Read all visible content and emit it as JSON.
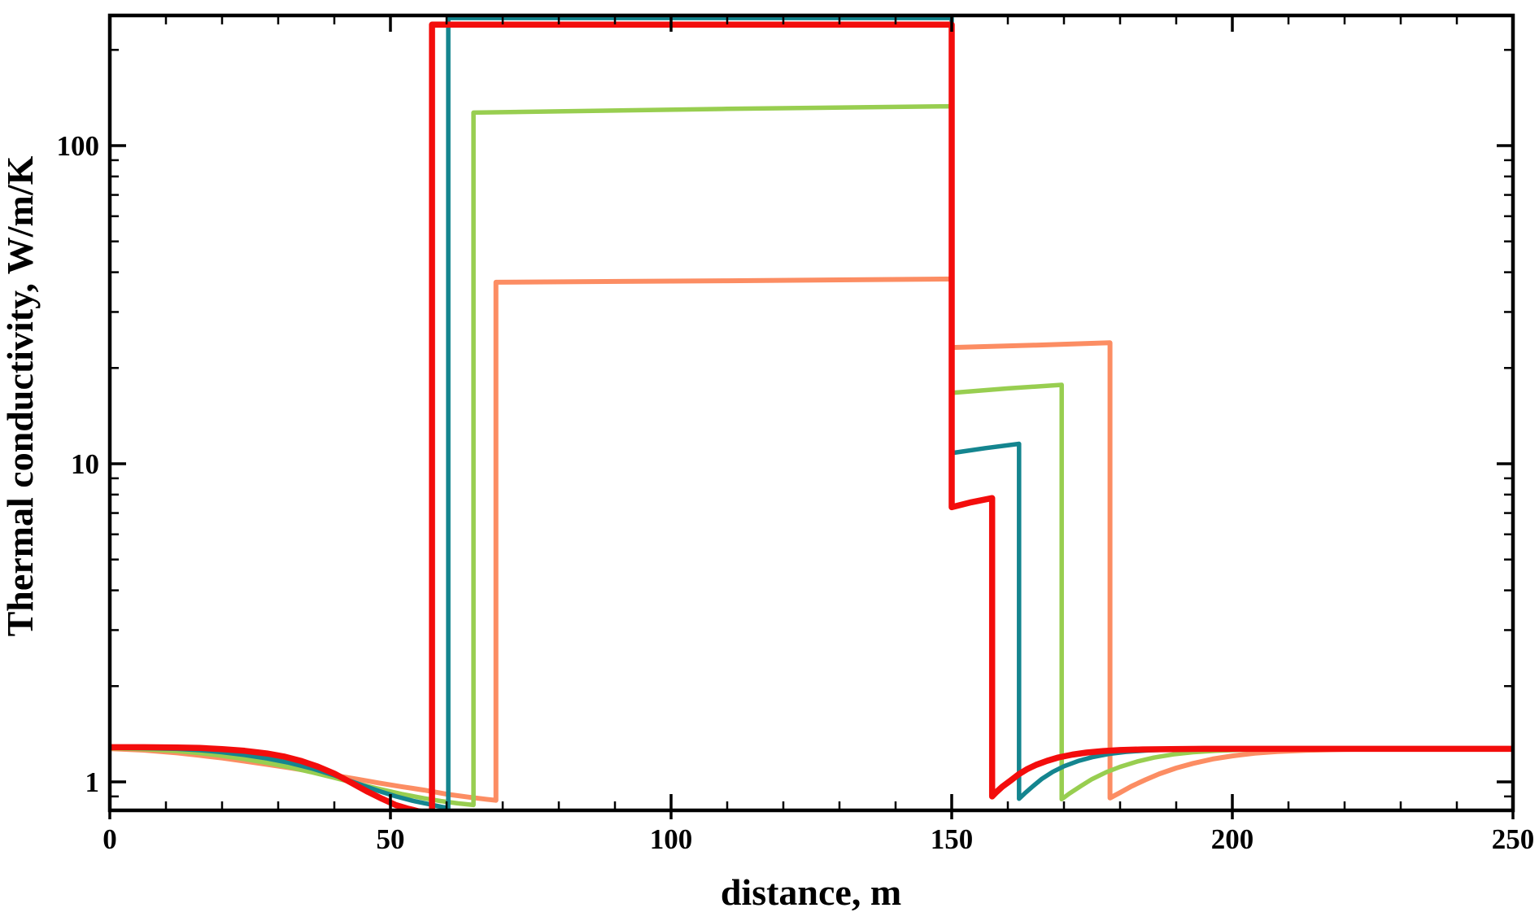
{
  "figure": {
    "background_color": "#ffffff",
    "frame_color": "#000000",
    "kind": "scientific line plot, log y-axis, no grid, no legend"
  },
  "chart_data": {
    "type": "line",
    "title": "",
    "xlabel": "distance, m",
    "ylabel": "Thermal conductivity, W/m/K",
    "x_scale": "linear",
    "y_scale": "log",
    "xlim": [
      0,
      250
    ],
    "ylim": [
      0.814,
      257
    ],
    "grid": false,
    "legend_position": "none",
    "x_major_ticks": [
      0,
      50,
      100,
      150,
      200,
      250
    ],
    "x_major_tick_labels": [
      "0",
      "50",
      "100",
      "150",
      "200",
      "250"
    ],
    "x_minor_tick_step": 10,
    "y_major_ticks": [
      1,
      10,
      100
    ],
    "y_major_tick_labels": [
      "1",
      "10",
      "100"
    ],
    "y_minor_ticks": [
      0.9,
      2,
      3,
      4,
      5,
      6,
      7,
      8,
      9,
      20,
      30,
      40,
      50,
      60,
      70,
      80,
      90,
      200
    ],
    "series": [
      {
        "name": "orange-curve",
        "color": "#fc8d63",
        "stroke_width": 6,
        "description": "baseline 1.27, dip to 0.87 at x=69, jump to plateau 37-38 until x=150, shelf 23.2-24.0 until x=178, dip 0.89, recover to 1.27",
        "points": [
          [
            0,
            1.272
          ],
          [
            6,
            1.258
          ],
          [
            12,
            1.233
          ],
          [
            16,
            1.212
          ],
          [
            20,
            1.188
          ],
          [
            24,
            1.162
          ],
          [
            28,
            1.135
          ],
          [
            32,
            1.107
          ],
          [
            36,
            1.078
          ],
          [
            40,
            1.048
          ],
          [
            44,
            1.02
          ],
          [
            48,
            0.992
          ],
          [
            52,
            0.966
          ],
          [
            56,
            0.942
          ],
          [
            60,
            0.915
          ],
          [
            64,
            0.895
          ],
          [
            67,
            0.882
          ],
          [
            68.8,
            0.875
          ],
          [
            68.8,
            37.2
          ],
          [
            110,
            37.6
          ],
          [
            150,
            38.1
          ],
          [
            150,
            23.2
          ],
          [
            165,
            23.6
          ],
          [
            178.2,
            24.0
          ],
          [
            178.2,
            0.89
          ],
          [
            180,
            0.925
          ],
          [
            182,
            0.968
          ],
          [
            184.5,
            1.015
          ],
          [
            187,
            1.06
          ],
          [
            190,
            1.105
          ],
          [
            193,
            1.143
          ],
          [
            196.5,
            1.18
          ],
          [
            200,
            1.207
          ],
          [
            204,
            1.23
          ],
          [
            208,
            1.245
          ],
          [
            213,
            1.257
          ],
          [
            219,
            1.264
          ],
          [
            226,
            1.268
          ],
          [
            235,
            1.27
          ],
          [
            250,
            1.27
          ]
        ]
      },
      {
        "name": "green-curve",
        "color": "#98ce50",
        "stroke_width": 5.5,
        "description": "baseline 1.27, dip to 0.85 at x=65, jump to plateau 127-133 until x=150, shelf 16.7-17.7 until x=170, dip 0.88, recover to 1.27",
        "points": [
          [
            0,
            1.276
          ],
          [
            6,
            1.268
          ],
          [
            12,
            1.25
          ],
          [
            16,
            1.232
          ],
          [
            20,
            1.208
          ],
          [
            24,
            1.18
          ],
          [
            28,
            1.148
          ],
          [
            32,
            1.112
          ],
          [
            36,
            1.072
          ],
          [
            40,
            1.03
          ],
          [
            44,
            0.988
          ],
          [
            48,
            0.95
          ],
          [
            52,
            0.916
          ],
          [
            56,
            0.888
          ],
          [
            59,
            0.87
          ],
          [
            62,
            0.856
          ],
          [
            64.8,
            0.846
          ],
          [
            64.8,
            127
          ],
          [
            110,
            130.5
          ],
          [
            150,
            133
          ],
          [
            150,
            16.7
          ],
          [
            160,
            17.25
          ],
          [
            169.6,
            17.7
          ],
          [
            169.6,
            0.882
          ],
          [
            171,
            0.92
          ],
          [
            173,
            0.97
          ],
          [
            175,
            1.02
          ],
          [
            177.5,
            1.072
          ],
          [
            180,
            1.115
          ],
          [
            183,
            1.158
          ],
          [
            186,
            1.192
          ],
          [
            189.5,
            1.22
          ],
          [
            193,
            1.24
          ],
          [
            197,
            1.253
          ],
          [
            202,
            1.262
          ],
          [
            208,
            1.267
          ],
          [
            215,
            1.27
          ],
          [
            250,
            1.27
          ]
        ]
      },
      {
        "name": "teal-curve",
        "color": "#14858f",
        "stroke_width": 5.5,
        "description": "baseline 1.27, dip to 0.83 at x=60, jump to plateau 252 until x=150, shelf 10.8-11.6 until x=162, dip 0.88, recover to 1.27",
        "points": [
          [
            0,
            1.28
          ],
          [
            6,
            1.277
          ],
          [
            12,
            1.27
          ],
          [
            16,
            1.258
          ],
          [
            20,
            1.24
          ],
          [
            24,
            1.215
          ],
          [
            28,
            1.185
          ],
          [
            32,
            1.148
          ],
          [
            36,
            1.102
          ],
          [
            40,
            1.048
          ],
          [
            44,
            0.99
          ],
          [
            48,
            0.935
          ],
          [
            51,
            0.9
          ],
          [
            54,
            0.872
          ],
          [
            57,
            0.85
          ],
          [
            59,
            0.835
          ],
          [
            60.3,
            0.828
          ],
          [
            60.3,
            252
          ],
          [
            150,
            252
          ],
          [
            150,
            10.8
          ],
          [
            156,
            11.2
          ],
          [
            162,
            11.55
          ],
          [
            162,
            0.885
          ],
          [
            163,
            0.92
          ],
          [
            164.5,
            0.97
          ],
          [
            166,
            1.02
          ],
          [
            168,
            1.075
          ],
          [
            170,
            1.12
          ],
          [
            172.5,
            1.163
          ],
          [
            175,
            1.195
          ],
          [
            178,
            1.224
          ],
          [
            181,
            1.243
          ],
          [
            185,
            1.257
          ],
          [
            189,
            1.264
          ],
          [
            194,
            1.268
          ],
          [
            200,
            1.27
          ],
          [
            250,
            1.27
          ]
        ]
      },
      {
        "name": "red-curve",
        "color": "#f30d0c",
        "stroke_width": 7.5,
        "description": "baseline 1.28, dip to 0.80 at x=57, jump to plateau 240 until x=150, shelf 7.3-7.8 until x=157, dip 0.90, recover to 1.27",
        "points": [
          [
            0,
            1.285
          ],
          [
            6,
            1.285
          ],
          [
            12,
            1.282
          ],
          [
            16,
            1.278
          ],
          [
            20,
            1.268
          ],
          [
            24,
            1.252
          ],
          [
            28,
            1.228
          ],
          [
            31,
            1.202
          ],
          [
            34,
            1.165
          ],
          [
            37,
            1.118
          ],
          [
            40,
            1.062
          ],
          [
            43,
            0.995
          ],
          [
            46,
            0.93
          ],
          [
            48.5,
            0.885
          ],
          [
            51,
            0.845
          ],
          [
            53,
            0.825
          ],
          [
            55,
            0.808
          ],
          [
            56.5,
            0.801
          ],
          [
            57.4,
            0.799
          ],
          [
            57.4,
            240
          ],
          [
            150,
            240
          ],
          [
            150,
            7.3
          ],
          [
            153.5,
            7.57
          ],
          [
            157.2,
            7.8
          ],
          [
            157.2,
            0.9
          ],
          [
            158,
            0.93
          ],
          [
            159,
            0.965
          ],
          [
            160.5,
            1.01
          ],
          [
            162,
            1.058
          ],
          [
            163.5,
            1.098
          ],
          [
            165,
            1.13
          ],
          [
            167,
            1.165
          ],
          [
            169,
            1.193
          ],
          [
            171.5,
            1.218
          ],
          [
            174,
            1.236
          ],
          [
            177,
            1.25
          ],
          [
            180,
            1.259
          ],
          [
            184,
            1.265
          ],
          [
            189,
            1.268
          ],
          [
            195,
            1.27
          ],
          [
            250,
            1.27
          ]
        ]
      }
    ]
  }
}
